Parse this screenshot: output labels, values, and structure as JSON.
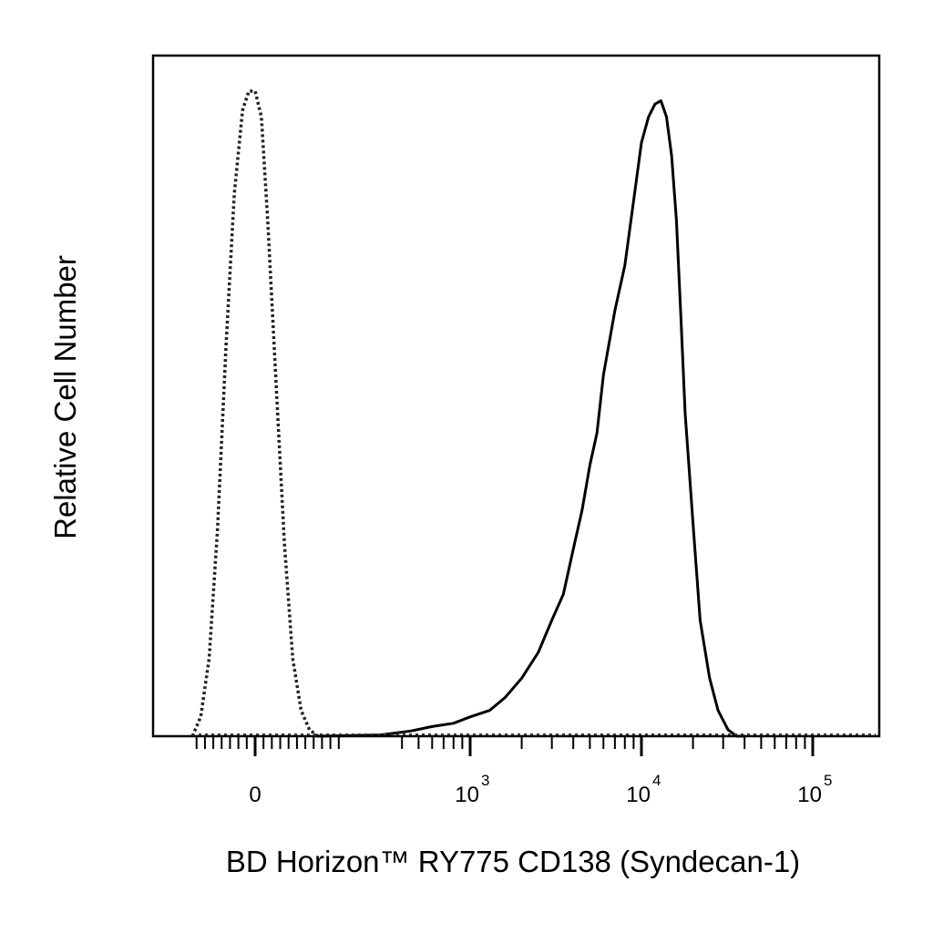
{
  "chart_data": {
    "type": "line",
    "title": "",
    "xlabel": "BD Horizon™ RY775  CD138 (Syndecan-1)",
    "ylabel": "Relative Cell Number",
    "x_scale": "biexponential",
    "xlim": [
      -150,
      200000
    ],
    "ylim": [
      0,
      1.0
    ],
    "grid": false,
    "legend": "none",
    "x_ticks": [
      {
        "value": 0,
        "base": "0",
        "exp": ""
      },
      {
        "value": 1000,
        "base": "10",
        "exp": "3"
      },
      {
        "value": 10000,
        "base": "10",
        "exp": "4"
      },
      {
        "value": 100000,
        "base": "10",
        "exp": "5"
      }
    ],
    "series": [
      {
        "style": "dotted",
        "color": "#222222",
        "x": [
          -150,
          -130,
          -110,
          -90,
          -70,
          -50,
          -30,
          -15,
          0,
          15,
          30,
          50,
          70,
          90,
          110,
          130,
          150
        ],
        "y": [
          0.0,
          0.03,
          0.12,
          0.32,
          0.6,
          0.84,
          0.97,
          1.0,
          1.0,
          0.96,
          0.8,
          0.55,
          0.3,
          0.12,
          0.04,
          0.01,
          0.0
        ]
      },
      {
        "style": "solid",
        "color": "#000000",
        "x": [
          150,
          300,
          450,
          600,
          800,
          1000,
          1300,
          1600,
          2000,
          2500,
          3000,
          3500,
          4000,
          4500,
          5000,
          5500,
          6000,
          7000,
          8000,
          9000,
          10000,
          11000,
          12000,
          13000,
          14000,
          15000,
          16000,
          17000,
          18000,
          20000,
          22000,
          25000,
          28000,
          32000,
          36000,
          40000
        ],
        "y": [
          0.0,
          0.002,
          0.008,
          0.015,
          0.02,
          0.03,
          0.04,
          0.06,
          0.09,
          0.13,
          0.18,
          0.22,
          0.29,
          0.35,
          0.42,
          0.47,
          0.56,
          0.66,
          0.73,
          0.83,
          0.92,
          0.96,
          0.98,
          0.985,
          0.96,
          0.9,
          0.8,
          0.65,
          0.5,
          0.33,
          0.18,
          0.09,
          0.04,
          0.01,
          0.0,
          0.0
        ]
      }
    ]
  }
}
